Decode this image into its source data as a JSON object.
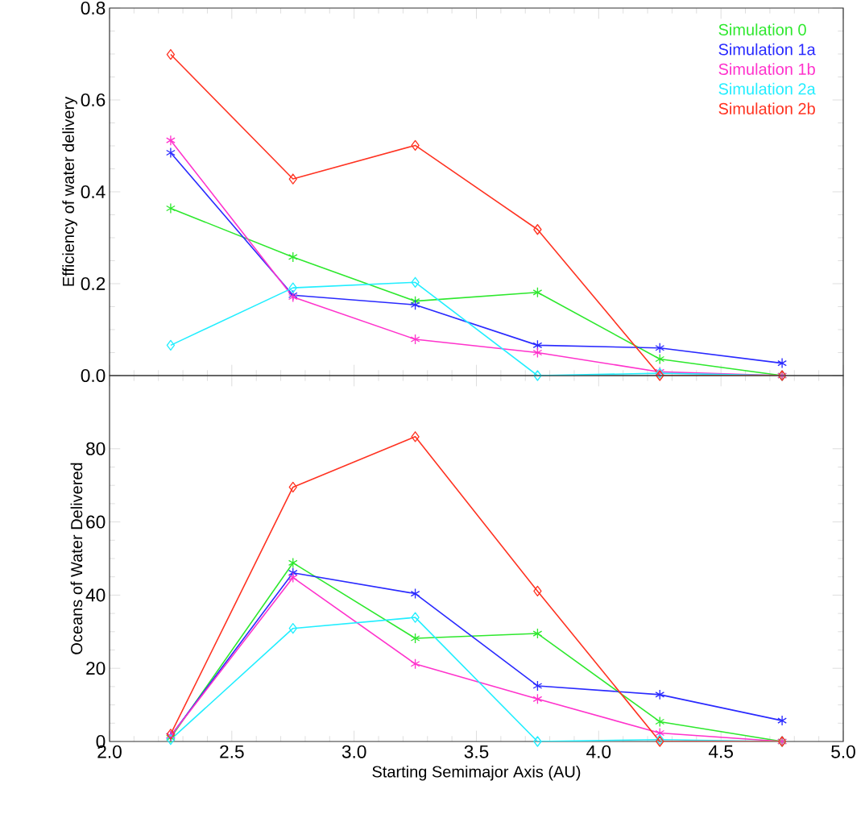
{
  "chart_data": [
    {
      "type": "line",
      "ylabel": "Efficiency of water delivery",
      "x": [
        2.25,
        2.75,
        3.25,
        3.75,
        4.25,
        4.75
      ],
      "xlim": [
        2.0,
        5.0
      ],
      "xticks": [
        {
          "value": 2.0,
          "label": null
        },
        {
          "value": 2.5,
          "label": null
        },
        {
          "value": 3.0,
          "label": null
        },
        {
          "value": 3.5,
          "label": null
        },
        {
          "value": 4.0,
          "label": null
        },
        {
          "value": 4.5,
          "label": null
        },
        {
          "value": 5.0,
          "label": null
        }
      ],
      "ylim": [
        0,
        0.8
      ],
      "yticks": [
        {
          "value": 0,
          "label": "0.0"
        },
        {
          "value": 0.2,
          "label": "0.2"
        },
        {
          "value": 0.4,
          "label": "0.4"
        },
        {
          "value": 0.6,
          "label": "0.6"
        },
        {
          "value": 0.8,
          "label": "0.8"
        }
      ],
      "tick_labels": "y",
      "legend": "top right",
      "series": [
        {
          "name": "Simulation 0",
          "color": "#2ee82e",
          "marker": "cross",
          "values": [
            0.364,
            0.258,
            0.162,
            0.181,
            0.036,
            0
          ]
        },
        {
          "name": "Simulation 1a",
          "color": "#2a2aff",
          "marker": "cross",
          "values": [
            0.485,
            0.175,
            0.154,
            0.066,
            0.06,
            0.027
          ]
        },
        {
          "name": "Simulation 1b",
          "color": "#ff33cc",
          "marker": "cross",
          "values": [
            0.512,
            0.171,
            0.079,
            0.05,
            0.008,
            0
          ]
        },
        {
          "name": "Simulation 2a",
          "color": "#22eeff",
          "marker": "diamond",
          "values": [
            0.066,
            0.191,
            0.203,
            0,
            0.005,
            0
          ]
        },
        {
          "name": "Simulation 2b",
          "color": "#ff3322",
          "marker": "diamond",
          "values": [
            0.699,
            0.428,
            0.501,
            0.318,
            0,
            0
          ]
        }
      ]
    },
    {
      "type": "line",
      "xlabel": "Starting Semimajor Axis (AU)",
      "ylabel": "Oceans of Water Delivered",
      "x": [
        2.25,
        2.75,
        3.25,
        3.75,
        4.25,
        4.75
      ],
      "xlim": [
        2.0,
        5.0
      ],
      "xticks": [
        {
          "value": 2.0,
          "label": "2.0"
        },
        {
          "value": 2.5,
          "label": "2.5"
        },
        {
          "value": 3.0,
          "label": "3.0"
        },
        {
          "value": 3.5,
          "label": "3.5"
        },
        {
          "value": 4.0,
          "label": "4.0"
        },
        {
          "value": 4.5,
          "label": "4.5"
        },
        {
          "value": 5.0,
          "label": "5.0"
        }
      ],
      "ylim": [
        0,
        100
      ],
      "yticks": [
        0,
        20,
        40,
        60,
        80
      ],
      "series": [
        {
          "color": "#2ee82e",
          "marker": "cross",
          "values": [
            1,
            48.8,
            28.2,
            29.5,
            5.4,
            0
          ]
        },
        {
          "color": "#2a2aff",
          "marker": "cross",
          "values": [
            1.5,
            46.1,
            40.4,
            15.2,
            12.8,
            5.7
          ]
        },
        {
          "color": "#ff33cc",
          "marker": "cross",
          "values": [
            1.5,
            44.8,
            21.2,
            11.6,
            2.3,
            0
          ]
        },
        {
          "color": "#22eeff",
          "marker": "diamond",
          "values": [
            0.5,
            30.9,
            33.9,
            0,
            0.5,
            0
          ]
        },
        {
          "color": "#ff3322",
          "marker": "diamond",
          "values": [
            2.0,
            69.5,
            83.3,
            41.1,
            0,
            0
          ]
        }
      ]
    }
  ]
}
